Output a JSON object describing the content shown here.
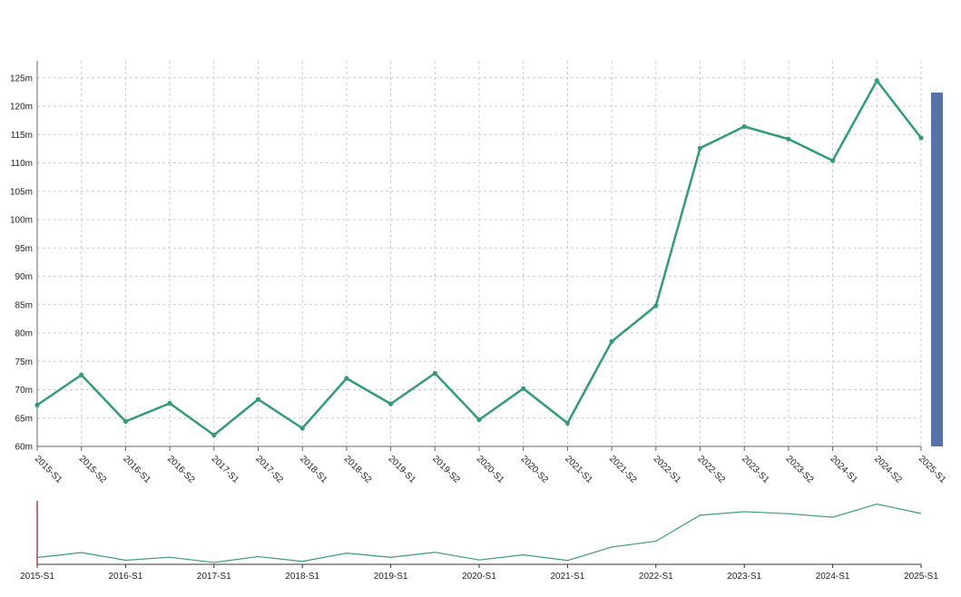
{
  "chart_data": {
    "type": "line",
    "x": [
      "2015-S1",
      "2015-S2",
      "2016-S1",
      "2016-S2",
      "2017-S1",
      "2017-S2",
      "2018-S1",
      "2018-S2",
      "2019-S1",
      "2019-S2",
      "2020-S1",
      "2020-S2",
      "2021-S1",
      "2021-S2",
      "2022-S1",
      "2022-S2",
      "2023-S1",
      "2023-S2",
      "2024-S1",
      "2024-S2",
      "2025-S1"
    ],
    "series": [
      {
        "values": [
          67.3,
          72.6,
          64.4,
          67.6,
          62.0,
          68.3,
          63.2,
          72.0,
          67.5,
          72.9,
          64.7,
          70.2,
          64.1,
          78.5,
          84.8,
          112.6,
          116.4,
          114.2,
          110.4,
          124.5,
          114.4
        ],
        "color": "#339a7a"
      }
    ],
    "y_ticks": [
      "60m",
      "65m",
      "70m",
      "75m",
      "80m",
      "85m",
      "90m",
      "95m",
      "100m",
      "105m",
      "110m",
      "115m",
      "120m",
      "125m"
    ],
    "ylim": [
      60,
      128
    ],
    "navigator_ticks": [
      "2015-S1",
      "2016-S1",
      "2017-S1",
      "2018-S1",
      "2019-S1",
      "2020-S1",
      "2021-S1",
      "2022-S1",
      "2023-S1",
      "2024-S1",
      "2025-S1"
    ],
    "grid": true,
    "legend": "none",
    "scrollbar_color": "#5672a8",
    "navigator_line_color": "#3a9a82",
    "navigator_handle_color": "#8b1a1a"
  }
}
